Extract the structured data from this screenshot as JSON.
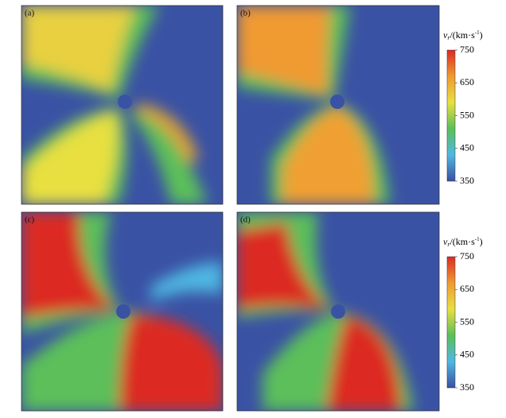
{
  "panels": [
    {
      "label": "(a)"
    },
    {
      "label": "(b)"
    },
    {
      "label": "(c)"
    },
    {
      "label": "(d)"
    }
  ],
  "colorbars": [
    {
      "title": {
        "symbol": "v",
        "subscript": "r",
        "unit": "/(km·s",
        "exponent": "-1",
        "close": ")"
      },
      "lim": [
        350,
        750
      ],
      "ticks": [
        350,
        450,
        550,
        650,
        750
      ],
      "colors": [
        "#3a4fa2",
        "#4fb8e3",
        "#5cbf5a",
        "#e8e040",
        "#f09a30",
        "#dc2a24"
      ]
    },
    {
      "title": {
        "symbol": "v",
        "subscript": "r",
        "unit": "/(km·s",
        "exponent": "-1",
        "close": ")"
      },
      "lim": [
        350,
        750
      ],
      "ticks": [
        350,
        450,
        550,
        650,
        750
      ],
      "colors": [
        "#3a4fa2",
        "#4fb8e3",
        "#5cbf5a",
        "#e8e040",
        "#f09a30",
        "#dc2a24"
      ]
    }
  ]
}
